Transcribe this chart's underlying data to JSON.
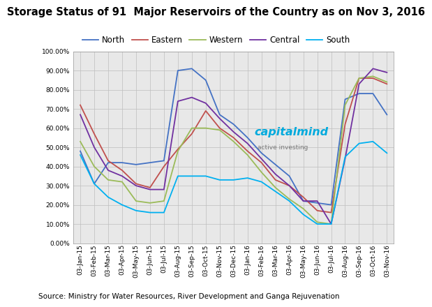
{
  "title": "Storage Status of 91  Major Reservoirs of the Country as on Nov 3, 2016",
  "source_text": "Source: Ministry for Water Resources, River Development and Ganga Rejuvenation",
  "watermark_line1": "capitalmind",
  "watermark_line2": "active investing",
  "x_labels": [
    "03-Jan-15",
    "03-Feb-15",
    "03-Mar-15",
    "03-Apr-15",
    "03-May-15",
    "03-Jun-15",
    "03-Jul-15",
    "03-Aug-15",
    "03-Sep-15",
    "03-Oct-15",
    "03-Nov-15",
    "03-Dec-15",
    "03-Jan-16",
    "03-Feb-16",
    "03-Mar-16",
    "03-Apr-16",
    "03-May-16",
    "03-Jun-16",
    "03-Jul-16",
    "03-Aug-16",
    "03-Sep-16",
    "03-Oct-16",
    "03-Nov-16"
  ],
  "series": {
    "North": {
      "color": "#4472C4",
      "data": [
        0.48,
        0.31,
        0.42,
        0.42,
        0.41,
        0.42,
        0.43,
        0.9,
        0.91,
        0.85,
        0.67,
        0.62,
        0.55,
        0.47,
        0.41,
        0.35,
        0.22,
        0.21,
        0.2,
        0.75,
        0.78,
        0.78,
        0.67
      ]
    },
    "Eastern": {
      "color": "#C0504D",
      "data": [
        0.72,
        0.57,
        0.43,
        0.38,
        0.31,
        0.29,
        0.4,
        0.49,
        0.57,
        0.69,
        0.6,
        0.55,
        0.48,
        0.42,
        0.33,
        0.3,
        0.24,
        0.17,
        0.16,
        0.62,
        0.86,
        0.86,
        0.83
      ]
    },
    "Western": {
      "color": "#9BBB59",
      "data": [
        0.53,
        0.4,
        0.33,
        0.32,
        0.22,
        0.21,
        0.22,
        0.48,
        0.6,
        0.6,
        0.59,
        0.53,
        0.46,
        0.37,
        0.29,
        0.23,
        0.18,
        0.11,
        0.1,
        0.72,
        0.86,
        0.87,
        0.84
      ]
    },
    "Central": {
      "color": "#7030A0",
      "data": [
        0.67,
        0.5,
        0.38,
        0.35,
        0.3,
        0.28,
        0.28,
        0.74,
        0.76,
        0.73,
        0.65,
        0.58,
        0.52,
        0.44,
        0.36,
        0.3,
        0.22,
        0.22,
        0.1,
        0.44,
        0.83,
        0.91,
        0.89
      ]
    },
    "South": {
      "color": "#00B0F0",
      "data": [
        0.46,
        0.31,
        0.24,
        0.2,
        0.17,
        0.16,
        0.16,
        0.35,
        0.35,
        0.35,
        0.33,
        0.33,
        0.34,
        0.32,
        0.27,
        0.22,
        0.15,
        0.1,
        0.1,
        0.45,
        0.52,
        0.53,
        0.47
      ]
    }
  },
  "ylim": [
    0.0,
    1.0
  ],
  "y_ticks": [
    0.0,
    0.1,
    0.2,
    0.3,
    0.4,
    0.5,
    0.6,
    0.7,
    0.8,
    0.9,
    1.0
  ],
  "background_color": "#FFFFFF",
  "plot_bg_color": "#E8E8E8",
  "grid_color": "#BEBEBE",
  "title_fontsize": 10.5,
  "legend_fontsize": 8.5,
  "tick_fontsize": 6.5,
  "source_fontsize": 7.5
}
